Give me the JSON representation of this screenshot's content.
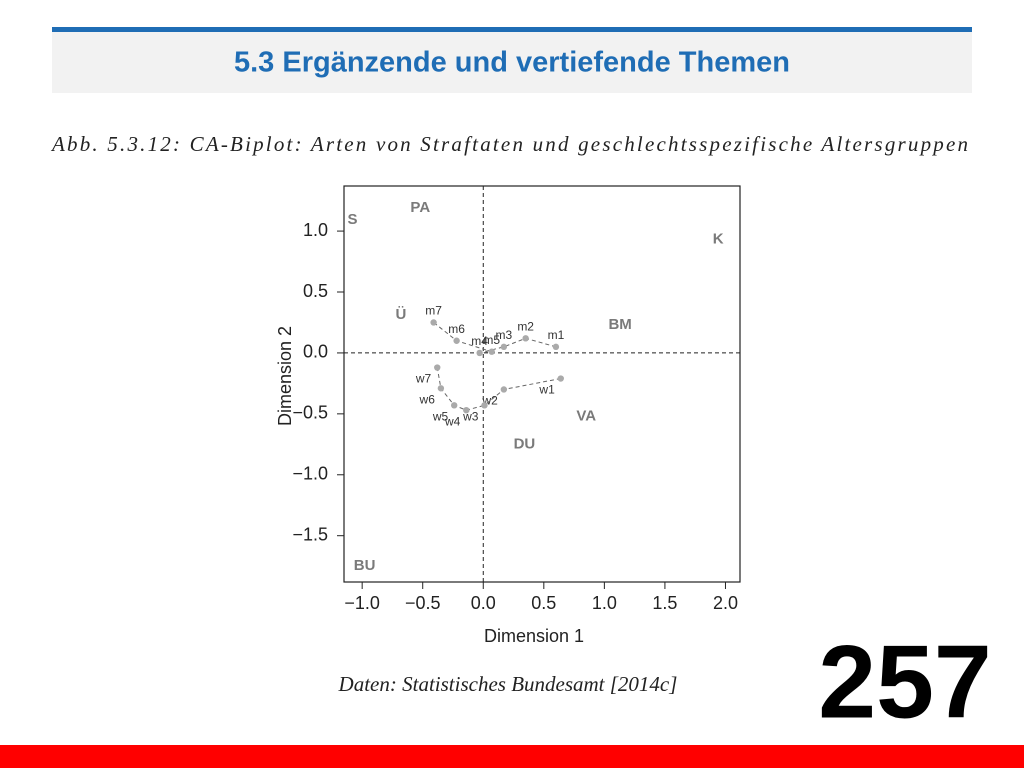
{
  "header": {
    "title": "5.3 Ergänzende und vertiefende Themen"
  },
  "caption": "Abb. 5.3.12: CA-Biplot: Arten von Straftaten und geschlechtsspezifische Altersgruppen",
  "source": "Daten: Statistisches Bundesamt [2014c]",
  "page_number": "257",
  "chart_data": {
    "type": "scatter",
    "xlabel": "Dimension 1",
    "ylabel": "Dimension 2",
    "xlim": [
      -1.15,
      2.12
    ],
    "ylim": [
      -1.88,
      1.37
    ],
    "xticks": [
      {
        "value": -1.0,
        "label": "−1.0"
      },
      {
        "value": -0.5,
        "label": "−0.5"
      },
      {
        "value": 0,
        "label": "0.0"
      },
      {
        "value": 0.5,
        "label": "0.5"
      },
      {
        "value": 1.0,
        "label": "1.0"
      },
      {
        "value": 1.5,
        "label": "1.5"
      },
      {
        "value": 2.0,
        "label": "2.0"
      }
    ],
    "yticks": [
      {
        "value": -1.5,
        "label": "−1.5"
      },
      {
        "value": -1.0,
        "label": "−1.0"
      },
      {
        "value": -0.5,
        "label": "−0.5"
      },
      {
        "value": 0,
        "label": "0.0"
      },
      {
        "value": 0.5,
        "label": "0.5"
      },
      {
        "value": 1.0,
        "label": "1.0"
      }
    ],
    "zero_lines": true,
    "series": [
      {
        "color": "#7a7a7a",
        "markers": false,
        "line": false,
        "labels": [
          "S",
          "PA",
          "K",
          "Ü",
          "BM",
          "VA",
          "DU",
          "BU"
        ],
        "x": [
          -1.08,
          -0.52,
          1.94,
          -0.68,
          1.13,
          0.85,
          0.34,
          -0.98
        ],
        "y": [
          1.09,
          1.19,
          0.93,
          0.31,
          0.23,
          -0.52,
          -0.75,
          -1.75
        ]
      },
      {
        "color": "#aaaaaa",
        "markers": true,
        "line": "dashed",
        "labels": [
          "m1",
          "m2",
          "m3",
          "m4",
          "m5",
          "m6",
          "m7"
        ],
        "x": [
          0.6,
          0.35,
          0.17,
          -0.03,
          0.07,
          -0.22,
          -0.41
        ],
        "y": [
          0.05,
          0.12,
          0.05,
          0.0,
          0.01,
          0.1,
          0.25
        ]
      },
      {
        "color": "#aaaaaa",
        "markers": true,
        "line": "dashed",
        "labels": [
          "w1",
          "w2",
          "w3",
          "w4",
          "w5",
          "w6",
          "w7"
        ],
        "x": [
          0.64,
          0.17,
          0.01,
          -0.14,
          -0.24,
          -0.35,
          -0.38
        ],
        "y": [
          -0.21,
          -0.3,
          -0.43,
          -0.47,
          -0.43,
          -0.29,
          -0.12
        ]
      }
    ]
  }
}
